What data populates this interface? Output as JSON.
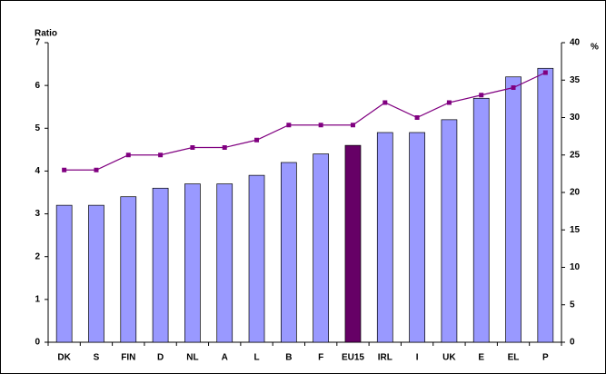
{
  "chart_data": {
    "type": "bar_line",
    "y_label": "Ratio",
    "y2_label": "%",
    "categories": [
      "DK",
      "S",
      "FIN",
      "D",
      "NL",
      "A",
      "L",
      "B",
      "F",
      "EU15",
      "IRL",
      "I",
      "UK",
      "E",
      "EL",
      "P"
    ],
    "series": [
      {
        "type": "bar",
        "values": [
          3.2,
          3.2,
          3.4,
          3.6,
          3.7,
          3.7,
          3.9,
          4.2,
          4.4,
          4.6,
          4.9,
          4.9,
          5.2,
          5.7,
          6.2,
          6.4
        ],
        "colors": [
          "#9999ff",
          "#9999ff",
          "#9999ff",
          "#9999ff",
          "#9999ff",
          "#9999ff",
          "#9999ff",
          "#9999ff",
          "#9999ff",
          "#660066",
          "#9999ff",
          "#9999ff",
          "#9999ff",
          "#9999ff",
          "#9999ff",
          "#9999ff"
        ]
      },
      {
        "type": "line",
        "axis": "y2",
        "color": "#800080",
        "values": [
          23,
          23,
          25,
          25,
          26,
          26,
          27,
          29,
          29,
          29,
          32,
          30,
          32,
          33,
          34,
          36
        ]
      }
    ],
    "ylim": [
      0,
      7
    ],
    "yticks": [
      0,
      1,
      2,
      3,
      4,
      5,
      6,
      7
    ],
    "y2lim": [
      0,
      40
    ],
    "y2ticks": [
      0,
      5,
      10,
      15,
      20,
      25,
      30,
      35,
      40
    ]
  }
}
